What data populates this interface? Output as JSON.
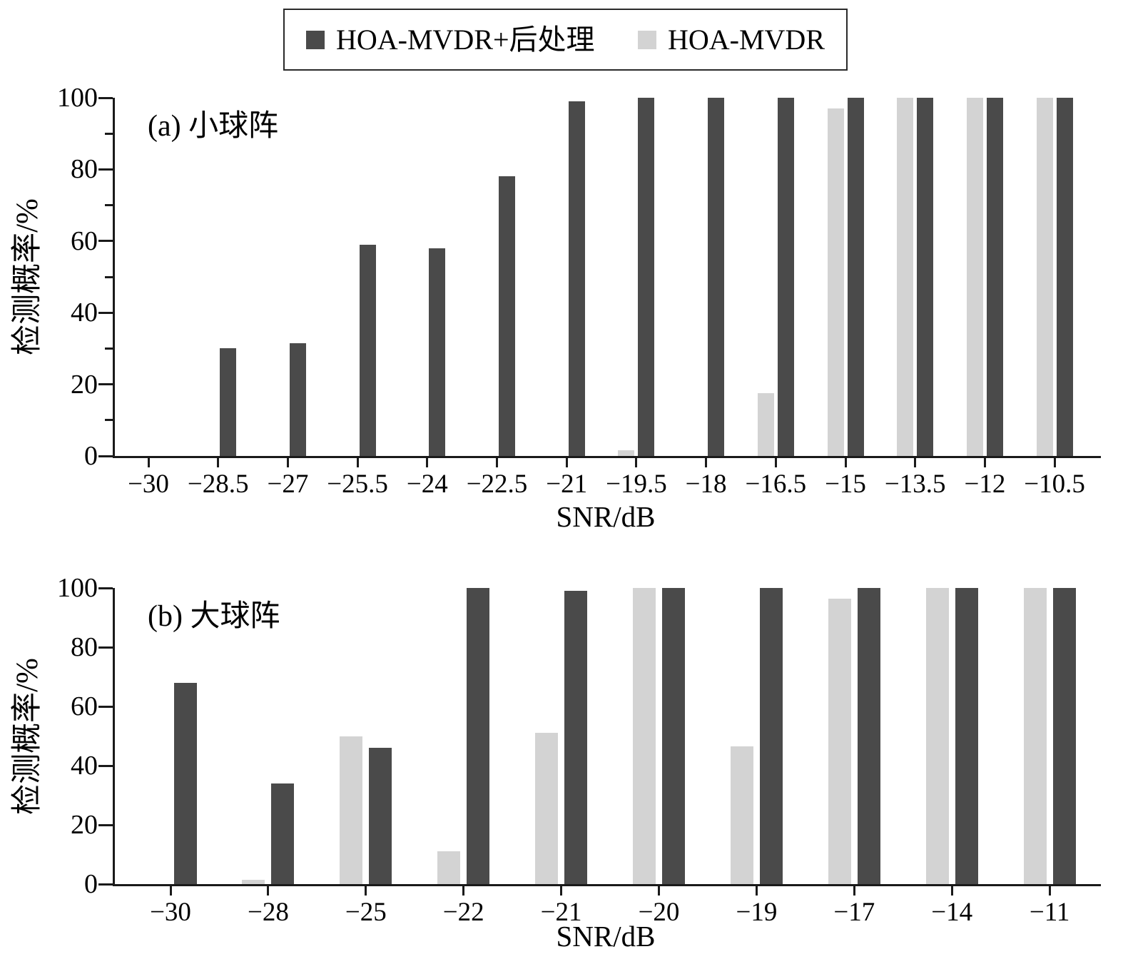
{
  "legend": {
    "items": [
      {
        "label": "HOA-MVDR+后处理",
        "color": "#4a4a4a"
      },
      {
        "label": "HOA-MVDR",
        "color": "#d3d3d3"
      }
    ]
  },
  "chart_data": [
    {
      "type": "bar",
      "panel_label": "(a) 小球阵",
      "xlabel": "SNR/dB",
      "ylabel": "检测概率/%",
      "ylim": [
        0,
        100
      ],
      "yticks": [
        0,
        20,
        40,
        60,
        80,
        100
      ],
      "minor_yticks": true,
      "grid": false,
      "legend_position": "top-outside",
      "categories": [
        "−30",
        "−28.5",
        "−27",
        "−25.5",
        "−24",
        "−22.5",
        "−21",
        "−19.5",
        "−18",
        "−16.5",
        "−15",
        "−13.5",
        "−12",
        "−10.5"
      ],
      "series": [
        {
          "name": "HOA-MVDR",
          "key": "hoa-mvdr",
          "color": "#d3d3d3",
          "values": [
            0,
            0,
            0,
            0,
            0,
            0,
            0,
            1.5,
            0,
            17.5,
            97,
            100,
            100,
            100
          ]
        },
        {
          "name": "HOA-MVDR+后处理",
          "key": "hoa-mvdr-post",
          "color": "#4a4a4a",
          "values": [
            0,
            30,
            31.5,
            59,
            58,
            78,
            99,
            100,
            100,
            100,
            100,
            100,
            100,
            100
          ]
        }
      ]
    },
    {
      "type": "bar",
      "panel_label": "(b) 大球阵",
      "xlabel": "SNR/dB",
      "ylabel": "检测概率/%",
      "ylim": [
        0,
        100
      ],
      "yticks": [
        0,
        20,
        40,
        60,
        80,
        100
      ],
      "minor_yticks": false,
      "grid": false,
      "legend_position": "top-outside",
      "categories": [
        "−30",
        "−28",
        "−25",
        "−22",
        "−21",
        "−20",
        "−19",
        "−17",
        "−14",
        "−11"
      ],
      "series": [
        {
          "name": "HOA-MVDR",
          "key": "hoa-mvdr",
          "color": "#d3d3d3",
          "values": [
            0,
            1.5,
            50,
            11,
            51,
            100,
            46.5,
            96.5,
            100,
            100
          ]
        },
        {
          "name": "HOA-MVDR+后处理",
          "key": "hoa-mvdr-post",
          "color": "#4a4a4a",
          "values": [
            68,
            34,
            46,
            100,
            99,
            100,
            100,
            100,
            100,
            100
          ]
        }
      ]
    }
  ]
}
